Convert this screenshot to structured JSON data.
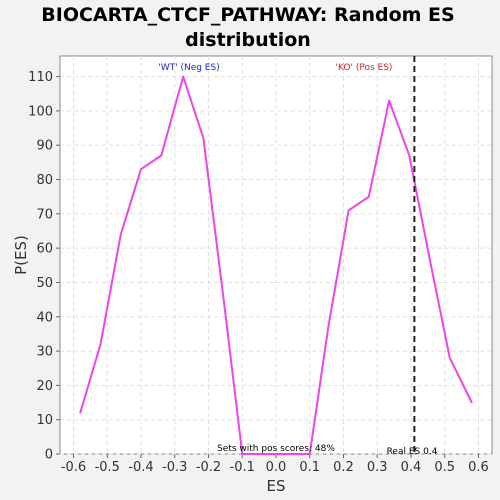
{
  "chart_data": {
    "type": "line",
    "title_line1": "BIOCARTA_CTCF_PATHWAY: Random ES",
    "title_line2": "distribution",
    "xlabel": "ES",
    "ylabel": "P(ES)",
    "xlim": [
      -0.64,
      0.64
    ],
    "ylim": [
      0,
      116
    ],
    "xticks": [
      -0.6,
      -0.5,
      -0.4,
      -0.3,
      -0.2,
      -0.1,
      0.0,
      0.1,
      0.2,
      0.3,
      0.4,
      0.5,
      0.6
    ],
    "xtick_labels": [
      "-0.6",
      "-0.5",
      "-0.4",
      "-0.3",
      "-0.2",
      "-0.1",
      "0.0",
      "0.1",
      "0.2",
      "0.3",
      "0.4",
      "0.5",
      "0.6"
    ],
    "yticks": [
      0,
      10,
      20,
      30,
      40,
      50,
      60,
      70,
      80,
      90,
      100,
      110
    ],
    "ytick_labels": [
      "0",
      "10",
      "20",
      "30",
      "40",
      "50",
      "60",
      "70",
      "80",
      "90",
      "100",
      "110"
    ],
    "grid": true,
    "series": [
      {
        "color": "#ee44ee",
        "x": [
          -0.58,
          -0.52,
          -0.46,
          -0.4,
          -0.34,
          -0.275,
          -0.215,
          -0.155,
          -0.1,
          0.1,
          0.155,
          0.215,
          0.275,
          0.335,
          0.395,
          0.455,
          0.515,
          0.58
        ],
        "y": [
          12,
          32,
          64,
          83,
          87,
          110,
          92,
          45,
          0,
          0,
          37,
          71,
          75,
          103,
          87,
          57,
          28,
          15
        ]
      }
    ],
    "real_es": 0.41,
    "annotations": {
      "neg_label": "'WT' (Neg ES)",
      "neg_color": "#2222dd",
      "pos_label": "'KO' (Pos ES)",
      "pos_color": "#dd2222",
      "pos_scores": "Sets with pos scores: 48%",
      "real_es_label": "Real ES 0.4"
    }
  }
}
